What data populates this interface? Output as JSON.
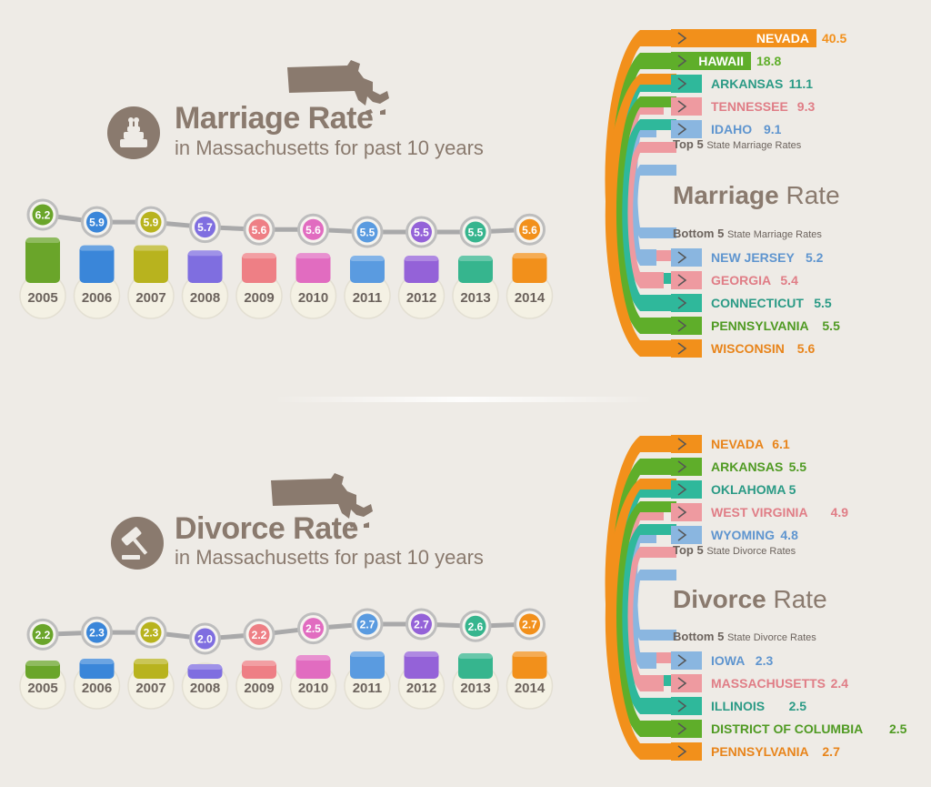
{
  "chart_data": [
    {
      "type": "bar",
      "title": "Marriage Rate",
      "subtitle": "in Massachusetts for past 10 years",
      "categories": [
        "2005",
        "2006",
        "2007",
        "2008",
        "2009",
        "2010",
        "2011",
        "2012",
        "2013",
        "2014"
      ],
      "values": [
        6.2,
        5.9,
        5.9,
        5.7,
        5.6,
        5.6,
        5.5,
        5.5,
        5.5,
        5.6
      ],
      "colors": [
        "#6aa52a",
        "#3a86d9",
        "#b8b31e",
        "#7f6ee0",
        "#ee7f85",
        "#e16cc0",
        "#5a9be0",
        "#9462d8",
        "#36b58e",
        "#f2901b"
      ]
    },
    {
      "type": "bar",
      "title": "Divorce Rate",
      "subtitle": "in Massachusetts for past 10 years",
      "categories": [
        "2005",
        "2006",
        "2007",
        "2008",
        "2009",
        "2010",
        "2011",
        "2012",
        "2013",
        "2014"
      ],
      "values": [
        2.2,
        2.3,
        2.3,
        2.0,
        2.2,
        2.5,
        2.7,
        2.7,
        2.6,
        2.7
      ],
      "colors": [
        "#6aa52a",
        "#3a86d9",
        "#b8b31e",
        "#7f6ee0",
        "#ee7f85",
        "#e16cc0",
        "#5a9be0",
        "#9462d8",
        "#36b58e",
        "#f2901b"
      ]
    },
    {
      "type": "bar",
      "title": "Marriage Rate",
      "top_label_bold": "Top 5",
      "top_label": "State Marriage Rates",
      "bottom_label_bold": "Bottom 5",
      "bottom_label": "State Marriage Rates",
      "top": [
        {
          "state": "NEVADA",
          "value": 40.5,
          "color": "#f2901b",
          "text": "#ffffff"
        },
        {
          "state": "HAWAII",
          "value": 18.8,
          "color": "#5fae2a",
          "text": "#ffffff"
        },
        {
          "state": "ARKANSAS",
          "value": 11.1,
          "color": "#2fb89b",
          "text": "#2a9a85"
        },
        {
          "state": "TENNESSEE",
          "value": 9.3,
          "color": "#ee9aa0",
          "text": "#e07d86"
        },
        {
          "state": "IDAHO",
          "value": 9.1,
          "color": "#8ab6e0",
          "text": "#5f95cf"
        }
      ],
      "bottom": [
        {
          "state": "NEW JERSEY",
          "value": 5.2,
          "color": "#8ab6e0",
          "text": "#5f95cf"
        },
        {
          "state": "GEORGIA",
          "value": 5.4,
          "color": "#ee9aa0",
          "text": "#e07d86"
        },
        {
          "state": "CONNECTICUT",
          "value": 5.5,
          "color": "#2fb89b",
          "text": "#2a9a85"
        },
        {
          "state": "PENNSYLVANIA",
          "value": 5.5,
          "color": "#5fae2a",
          "text": "#4f9a22"
        },
        {
          "state": "WISCONSIN",
          "value": 5.6,
          "color": "#f2901b",
          "text": "#e8841a"
        }
      ]
    },
    {
      "type": "bar",
      "title": "Divorce Rate",
      "top_label_bold": "Top 5",
      "top_label": "State Divorce Rates",
      "bottom_label_bold": "Bottom 5",
      "bottom_label": "State Divorce Rates",
      "top": [
        {
          "state": "NEVADA",
          "value": 6.1,
          "color": "#f2901b",
          "text": "#e8841a"
        },
        {
          "state": "ARKANSAS",
          "value": 5.5,
          "color": "#5fae2a",
          "text": "#4f9a22"
        },
        {
          "state": "OKLAHOMA",
          "value": 5,
          "color": "#2fb89b",
          "text": "#2a9a85"
        },
        {
          "state": "WEST VIRGINIA",
          "value": 4.9,
          "color": "#ee9aa0",
          "text": "#e07d86"
        },
        {
          "state": "WYOMING",
          "value": 4.8,
          "color": "#8ab6e0",
          "text": "#5f95cf"
        }
      ],
      "bottom": [
        {
          "state": "IOWA",
          "value": 2.3,
          "color": "#8ab6e0",
          "text": "#5f95cf"
        },
        {
          "state": "MASSACHUSETTS",
          "value": 2.4,
          "color": "#ee9aa0",
          "text": "#e07d86"
        },
        {
          "state": "ILLINOIS",
          "value": 2.5,
          "color": "#2fb89b",
          "text": "#2a9a85"
        },
        {
          "state": "DISTRICT OF COLUMBIA",
          "value": 2.5,
          "color": "#5fae2a",
          "text": "#4f9a22"
        },
        {
          "state": "PENNSYLVANIA",
          "value": 2.7,
          "color": "#f2901b",
          "text": "#e8841a"
        }
      ]
    }
  ],
  "theme": {
    "brown": "#8a7a6e",
    "line": "#a9a9aa",
    "bubble": "#f4f1e4"
  },
  "icons": [
    "wedding-cake-icon",
    "gavel-icon",
    "massachusetts-map-icon"
  ]
}
